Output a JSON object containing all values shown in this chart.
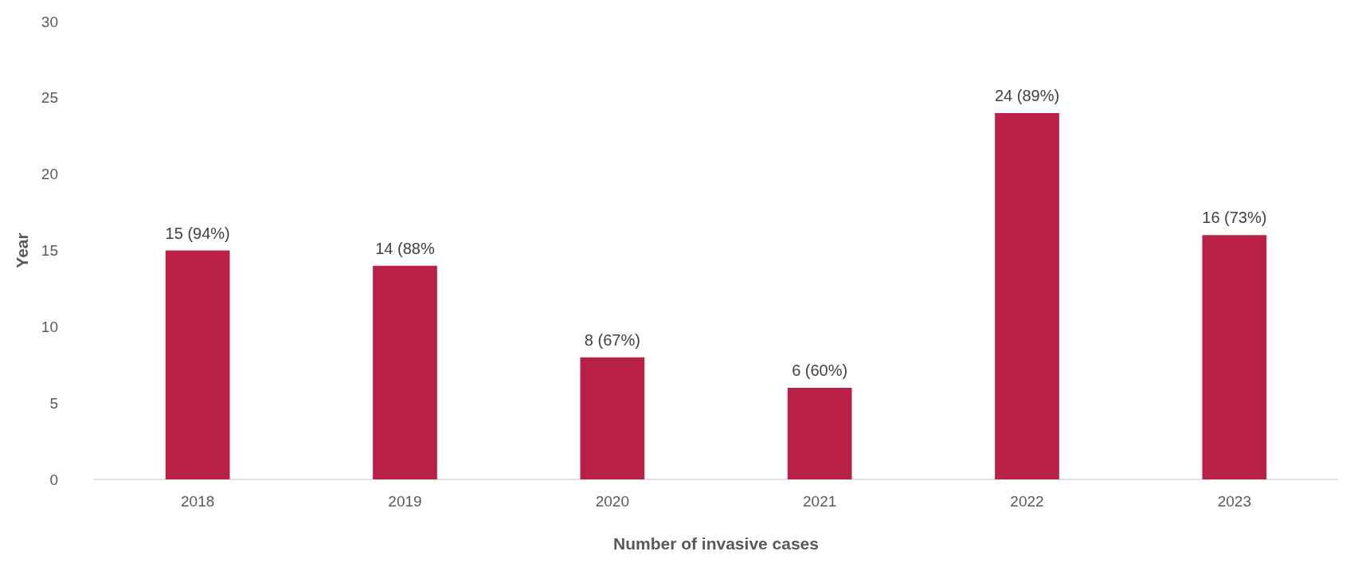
{
  "chart_data": {
    "type": "bar",
    "xlabel": "Number of invasive cases",
    "ylabel": "Year",
    "categories": [
      "2018",
      "2019",
      "2020",
      "2021",
      "2022",
      "2023"
    ],
    "values": [
      15,
      14,
      8,
      6,
      24,
      16
    ],
    "value_labels": [
      "15 (94%)",
      "14 (88%",
      "8 (67%)",
      "6 (60%)",
      "24 (89%)",
      "16 (73%)"
    ],
    "color": "#b92046",
    "ylim": [
      0,
      30
    ],
    "yticks": [
      0,
      5,
      10,
      15,
      20,
      25,
      30
    ]
  }
}
